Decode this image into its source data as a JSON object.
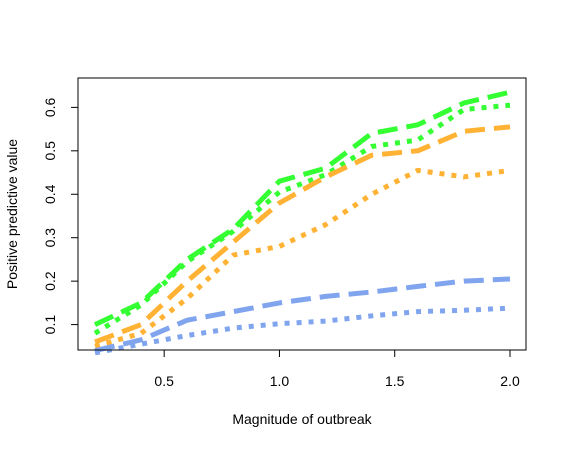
{
  "chart_data": {
    "type": "line",
    "title": "",
    "xlabel": "Magnitude of outbreak",
    "ylabel": "Positive predictive value",
    "xlim": [
      0.2,
      2.0
    ],
    "ylim": [
      0.03,
      0.64
    ],
    "x_ticks": [
      {
        "value": 0.5,
        "label": "0.5"
      },
      {
        "value": 1.0,
        "label": "1.0"
      },
      {
        "value": 1.5,
        "label": "1.5"
      },
      {
        "value": 2.0,
        "label": "2.0"
      }
    ],
    "y_ticks": [
      {
        "value": 0.1,
        "label": "0.1"
      },
      {
        "value": 0.2,
        "label": "0.2"
      },
      {
        "value": 0.3,
        "label": "0.3"
      },
      {
        "value": 0.4,
        "label": "0.4"
      },
      {
        "value": 0.5,
        "label": "0.5"
      },
      {
        "value": 0.6,
        "label": "0.6"
      }
    ],
    "grid": false,
    "legend": "none",
    "series": [
      {
        "color": "#33ff33",
        "dash": "long",
        "points": [
          [
            0.2,
            0.1
          ],
          [
            0.4,
            0.15
          ],
          [
            0.6,
            0.25
          ],
          [
            0.8,
            0.32
          ],
          [
            1.0,
            0.43
          ],
          [
            1.2,
            0.46
          ],
          [
            1.4,
            0.54
          ],
          [
            1.6,
            0.56
          ],
          [
            1.8,
            0.61
          ],
          [
            2.0,
            0.635
          ]
        ]
      },
      {
        "color": "#33ff33",
        "dash": "dotted",
        "points": [
          [
            0.2,
            0.08
          ],
          [
            0.4,
            0.145
          ],
          [
            0.6,
            0.245
          ],
          [
            0.8,
            0.315
          ],
          [
            1.0,
            0.405
          ],
          [
            1.2,
            0.445
          ],
          [
            1.4,
            0.51
          ],
          [
            1.6,
            0.525
          ],
          [
            1.8,
            0.595
          ],
          [
            2.0,
            0.605
          ]
        ]
      },
      {
        "color": "#ffb233",
        "dash": "long",
        "points": [
          [
            0.2,
            0.06
          ],
          [
            0.4,
            0.1
          ],
          [
            0.6,
            0.2
          ],
          [
            0.8,
            0.29
          ],
          [
            1.0,
            0.38
          ],
          [
            1.2,
            0.44
          ],
          [
            1.4,
            0.49
          ],
          [
            1.6,
            0.5
          ],
          [
            1.8,
            0.545
          ],
          [
            2.0,
            0.555
          ]
        ]
      },
      {
        "color": "#ffb233",
        "dash": "dotted",
        "points": [
          [
            0.2,
            0.05
          ],
          [
            0.4,
            0.08
          ],
          [
            0.6,
            0.16
          ],
          [
            0.8,
            0.26
          ],
          [
            1.0,
            0.28
          ],
          [
            1.2,
            0.33
          ],
          [
            1.4,
            0.4
          ],
          [
            1.6,
            0.455
          ],
          [
            1.8,
            0.44
          ],
          [
            2.0,
            0.455
          ]
        ]
      },
      {
        "color": "#80a5ee",
        "dash": "long",
        "points": [
          [
            0.2,
            0.04
          ],
          [
            0.4,
            0.065
          ],
          [
            0.6,
            0.11
          ],
          [
            0.8,
            0.13
          ],
          [
            1.0,
            0.15
          ],
          [
            1.2,
            0.165
          ],
          [
            1.4,
            0.175
          ],
          [
            1.6,
            0.188
          ],
          [
            1.8,
            0.2
          ],
          [
            2.0,
            0.205
          ]
        ]
      },
      {
        "color": "#80a5ee",
        "dash": "dotted",
        "points": [
          [
            0.2,
            0.035
          ],
          [
            0.4,
            0.055
          ],
          [
            0.6,
            0.075
          ],
          [
            0.8,
            0.092
          ],
          [
            1.0,
            0.102
          ],
          [
            1.2,
            0.108
          ],
          [
            1.4,
            0.12
          ],
          [
            1.6,
            0.13
          ],
          [
            1.8,
            0.133
          ],
          [
            2.0,
            0.138
          ]
        ]
      }
    ]
  }
}
